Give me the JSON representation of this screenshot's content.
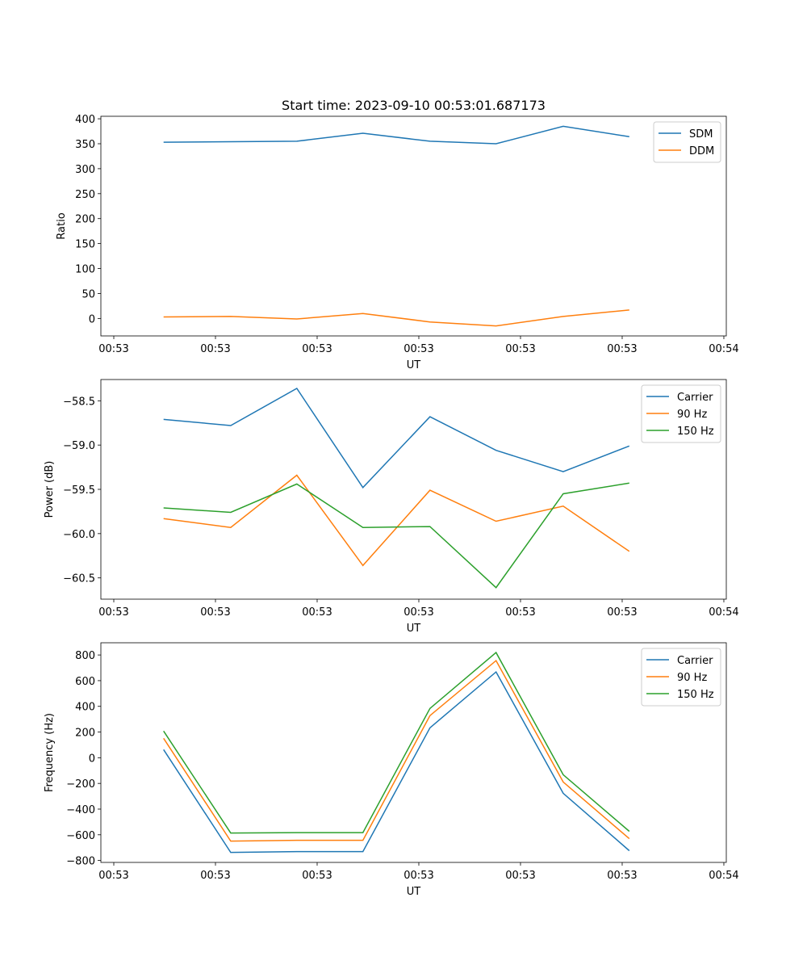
{
  "colors": {
    "series1": "#1f77b4",
    "series2": "#ff7f0e",
    "series3": "#2ca02c"
  },
  "chart_data": [
    {
      "type": "line",
      "title": "Start time: 2023-09-10 00:53:01.687173",
      "xlabel": "UT",
      "ylabel": "Ratio",
      "x": [
        4.9,
        11.5,
        18.0,
        24.5,
        31.1,
        37.6,
        44.2,
        50.7
      ],
      "xlim": [
        -1.27,
        60.24
      ],
      "xticks": [
        0,
        10,
        20,
        30,
        40,
        50,
        60
      ],
      "xticklabels": [
        "00:53",
        "00:53",
        "00:53",
        "00:53",
        "00:53",
        "00:53",
        "00:54"
      ],
      "ylim": [
        -35,
        405
      ],
      "yticks": [
        0,
        50,
        100,
        150,
        200,
        250,
        300,
        350,
        400
      ],
      "yticklabels": [
        "0",
        "50",
        "100",
        "150",
        "200",
        "250",
        "300",
        "350",
        "400"
      ],
      "legend_position": "top-right",
      "series": [
        {
          "name": "SDM",
          "values": [
            353,
            354,
            355,
            371,
            355,
            350,
            385,
            364
          ]
        },
        {
          "name": "DDM",
          "values": [
            3,
            4,
            -1,
            10,
            -7,
            -15,
            4,
            17
          ]
        }
      ]
    },
    {
      "type": "line",
      "title": "",
      "xlabel": "UT",
      "ylabel": "Power (dB)",
      "x": [
        4.9,
        11.5,
        18.0,
        24.5,
        31.1,
        37.6,
        44.2,
        50.7
      ],
      "xlim": [
        -1.27,
        60.24
      ],
      "xticks": [
        0,
        10,
        20,
        30,
        40,
        50,
        60
      ],
      "xticklabels": [
        "00:53",
        "00:53",
        "00:53",
        "00:53",
        "00:53",
        "00:53",
        "00:54"
      ],
      "ylim": [
        -60.74,
        -58.26
      ],
      "yticks": [
        -58.5,
        -59.0,
        -59.5,
        -60.0,
        -60.5
      ],
      "yticklabels": [
        "−58.5",
        "−59.0",
        "−59.5",
        "−60.0",
        "−60.5"
      ],
      "legend_position": "top-right",
      "series": [
        {
          "name": "Carrier",
          "values": [
            -58.71,
            -58.78,
            -58.36,
            -59.48,
            -58.68,
            -59.06,
            -59.3,
            -59.01
          ]
        },
        {
          "name": "90 Hz",
          "values": [
            -59.83,
            -59.93,
            -59.34,
            -60.36,
            -59.51,
            -59.86,
            -59.69,
            -60.2
          ]
        },
        {
          "name": "150 Hz",
          "values": [
            -59.71,
            -59.76,
            -59.44,
            -59.93,
            -59.92,
            -60.61,
            -59.55,
            -59.43
          ]
        }
      ]
    },
    {
      "type": "line",
      "title": "",
      "xlabel": "UT",
      "ylabel": "Frequency (Hz)",
      "x": [
        4.9,
        11.5,
        18.0,
        24.5,
        31.1,
        37.6,
        44.2,
        50.7
      ],
      "xlim": [
        -1.27,
        60.24
      ],
      "xticks": [
        0,
        10,
        20,
        30,
        40,
        50,
        60
      ],
      "xticklabels": [
        "00:53",
        "00:53",
        "00:53",
        "00:53",
        "00:53",
        "00:53",
        "00:54"
      ],
      "ylim": [
        -815,
        895
      ],
      "yticks": [
        800,
        600,
        400,
        200,
        0,
        -200,
        -400,
        -600,
        -800
      ],
      "yticklabels": [
        "800",
        "600",
        "400",
        "200",
        "0",
        "−200",
        "−400",
        "−600",
        "−800"
      ],
      "legend_position": "top-right",
      "series": [
        {
          "name": "Carrier",
          "values": [
            63,
            -737,
            -731,
            -731,
            233,
            668,
            -277,
            -724
          ]
        },
        {
          "name": "90 Hz",
          "values": [
            151,
            -649,
            -643,
            -643,
            328,
            756,
            -189,
            -630
          ]
        },
        {
          "name": "150 Hz",
          "values": [
            208,
            -586,
            -583,
            -583,
            384,
            819,
            -132,
            -573
          ]
        }
      ]
    }
  ]
}
